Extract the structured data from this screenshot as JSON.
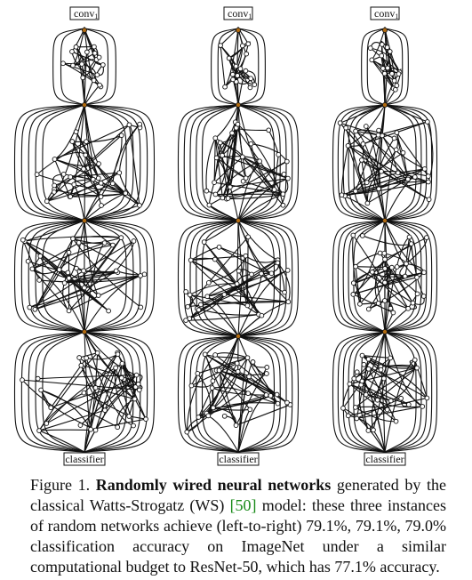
{
  "figure": {
    "networks": [
      {
        "input_label": "conv",
        "input_subscript": "1",
        "output_label": "classifier"
      },
      {
        "input_label": "conv",
        "input_subscript": "1",
        "output_label": "classifier"
      },
      {
        "input_label": "conv",
        "input_subscript": "1",
        "output_label": "classifier"
      }
    ]
  },
  "caption": {
    "prefix": "Figure 1.",
    "bold": "Randomly wired neural networks",
    "part1": "generated by the classical Watts-Strogatz (WS)",
    "ref": "[50]",
    "part2": "model: these three instances of random networks achieve (left-to-right) 79.1%, 79.1%, 79.0% classification accuracy on ImageNet under a similar computational budget to ResNet-50, which has 77.1% accuracy."
  }
}
